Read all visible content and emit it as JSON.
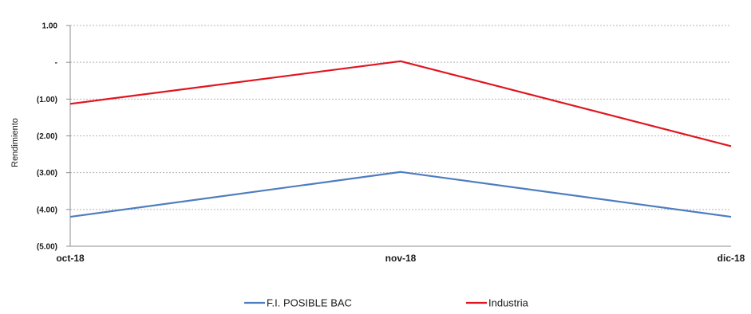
{
  "chart_data": {
    "type": "line",
    "title": "",
    "xlabel": "",
    "ylabel": "Rendimiento",
    "categories": [
      "oct-18",
      "nov-18",
      "dic-18"
    ],
    "ylim": [
      -5.0,
      1.0
    ],
    "yticks": [
      1.0,
      0.0,
      -1.0,
      -2.0,
      -3.0,
      -4.0,
      -5.0
    ],
    "ytick_labels": [
      "1.00",
      "-",
      "(1.00)",
      "(2.00)",
      "(3.00)",
      "(4.00)",
      "(5.00)"
    ],
    "grid": true,
    "legend_position": "bottom",
    "series": [
      {
        "name": "F.I. POSIBLE BAC",
        "color": "#4f7dc0",
        "values": [
          -4.2,
          -2.98,
          -4.2
        ]
      },
      {
        "name": "Industria",
        "color": "#e0151f",
        "values": [
          -1.13,
          0.03,
          -2.28
        ]
      }
    ]
  }
}
